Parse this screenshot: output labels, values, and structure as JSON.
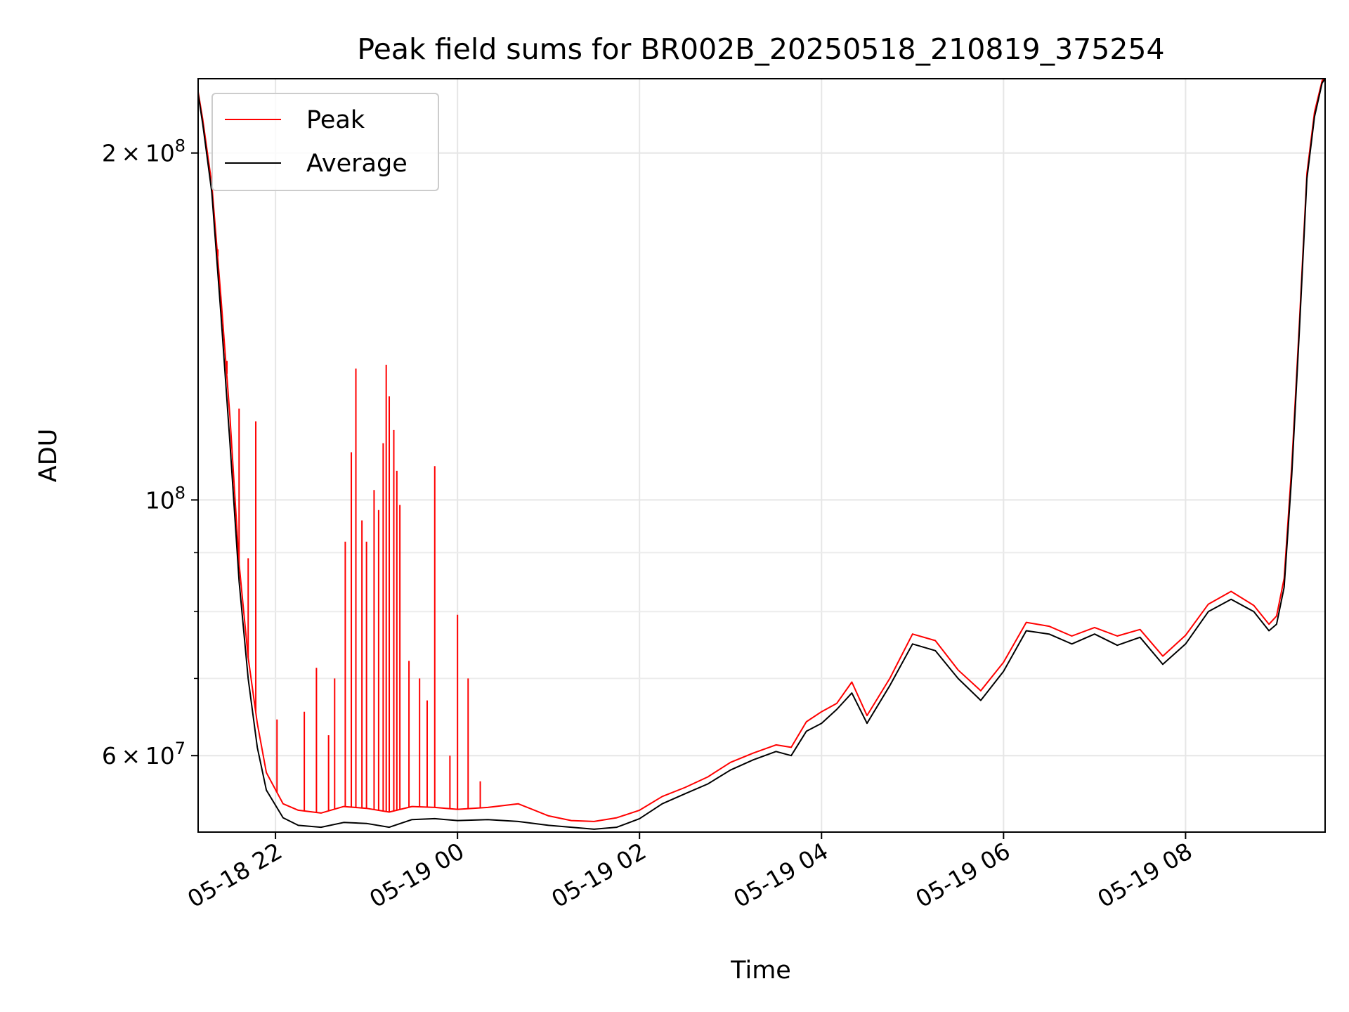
{
  "chart_data": {
    "type": "line",
    "title": "Peak field sums for BR002B_20250518_210819_375254",
    "xlabel": "Time",
    "ylabel": "ADU",
    "y_scale": "log",
    "ylim": [
      51500000,
      232000000
    ],
    "xlim": [
      "2025-05-18 21:09",
      "2025-05-19 09:32"
    ],
    "grid": true,
    "legend_location": "top-left",
    "x_ticks": [
      {
        "value": "2025-05-18 22:00",
        "label": "05-18 22"
      },
      {
        "value": "2025-05-19 00:00",
        "label": "05-19 00"
      },
      {
        "value": "2025-05-19 02:00",
        "label": "05-19 02"
      },
      {
        "value": "2025-05-19 04:00",
        "label": "05-19 04"
      },
      {
        "value": "2025-05-19 06:00",
        "label": "05-19 06"
      },
      {
        "value": "2025-05-19 08:00",
        "label": "05-19 08"
      }
    ],
    "y_ticks": [
      {
        "value": 200000000,
        "mantissa": "2",
        "exp": "8"
      },
      {
        "value": 100000000,
        "mantissa": "",
        "exp": "8"
      },
      {
        "value": 60000000,
        "mantissa": "6",
        "exp": "7"
      }
    ],
    "y_minor_ticks": [
      70000000,
      80000000,
      90000000
    ],
    "series": [
      {
        "name": "Average",
        "color": "#000000",
        "x": [
          "2025-05-18 21:09",
          "2025-05-18 21:12",
          "2025-05-18 21:18",
          "2025-05-18 21:24",
          "2025-05-18 21:30",
          "2025-05-18 21:36",
          "2025-05-18 21:42",
          "2025-05-18 21:48",
          "2025-05-18 21:54",
          "2025-05-18 22:05",
          "2025-05-18 22:15",
          "2025-05-18 22:30",
          "2025-05-18 22:45",
          "2025-05-18 23:00",
          "2025-05-18 23:15",
          "2025-05-18 23:30",
          "2025-05-18 23:45",
          "2025-05-19 00:00",
          "2025-05-19 00:20",
          "2025-05-19 00:40",
          "2025-05-19 01:00",
          "2025-05-19 01:15",
          "2025-05-19 01:30",
          "2025-05-19 01:45",
          "2025-05-19 02:00",
          "2025-05-19 02:15",
          "2025-05-19 02:30",
          "2025-05-19 02:45",
          "2025-05-19 03:00",
          "2025-05-19 03:15",
          "2025-05-19 03:30",
          "2025-05-19 03:40",
          "2025-05-19 03:50",
          "2025-05-19 04:00",
          "2025-05-19 04:10",
          "2025-05-19 04:20",
          "2025-05-19 04:30",
          "2025-05-19 04:45",
          "2025-05-19 05:00",
          "2025-05-19 05:15",
          "2025-05-19 05:30",
          "2025-05-19 05:45",
          "2025-05-19 06:00",
          "2025-05-19 06:15",
          "2025-05-19 06:30",
          "2025-05-19 06:45",
          "2025-05-19 07:00",
          "2025-05-19 07:15",
          "2025-05-19 07:30",
          "2025-05-19 07:45",
          "2025-05-19 08:00",
          "2025-05-19 08:15",
          "2025-05-19 08:30",
          "2025-05-19 08:45",
          "2025-05-19 08:55",
          "2025-05-19 09:00",
          "2025-05-19 09:05",
          "2025-05-19 09:10",
          "2025-05-19 09:15",
          "2025-05-19 09:20",
          "2025-05-19 09:25",
          "2025-05-19 09:30",
          "2025-05-19 09:32"
        ],
        "y": [
          225000000,
          212000000,
          185000000,
          145000000,
          112000000,
          85000000,
          70000000,
          61000000,
          56000000,
          53000000,
          52200000,
          52000000,
          52500000,
          52400000,
          52000000,
          52800000,
          52900000,
          52700000,
          52800000,
          52600000,
          52200000,
          52000000,
          51800000,
          52000000,
          52900000,
          54500000,
          55600000,
          56700000,
          58300000,
          59500000,
          60500000,
          60000000,
          63000000,
          64000000,
          65800000,
          68000000,
          64000000,
          69000000,
          75000000,
          74000000,
          70000000,
          67000000,
          71000000,
          77000000,
          76500000,
          75000000,
          76500000,
          74800000,
          76000000,
          72000000,
          75000000,
          80000000,
          82000000,
          80000000,
          77000000,
          78000000,
          84000000,
          105000000,
          140000000,
          190000000,
          215000000,
          230000000,
          232000000
        ]
      },
      {
        "name": "Peak",
        "color": "#ff0000",
        "x": [
          "2025-05-18 21:09",
          "2025-05-18 21:12",
          "2025-05-18 21:18",
          "2025-05-18 21:24",
          "2025-05-18 21:30",
          "2025-05-18 21:36",
          "2025-05-18 21:42",
          "2025-05-18 21:48",
          "2025-05-18 21:54",
          "2025-05-18 22:05",
          "2025-05-18 22:15",
          "2025-05-18 22:30",
          "2025-05-18 22:45",
          "2025-05-18 23:00",
          "2025-05-18 23:15",
          "2025-05-18 23:30",
          "2025-05-18 23:45",
          "2025-05-19 00:00",
          "2025-05-19 00:20",
          "2025-05-19 00:40",
          "2025-05-19 01:00",
          "2025-05-19 01:15",
          "2025-05-19 01:30",
          "2025-05-19 01:45",
          "2025-05-19 02:00",
          "2025-05-19 02:15",
          "2025-05-19 02:30",
          "2025-05-19 02:45",
          "2025-05-19 03:00",
          "2025-05-19 03:15",
          "2025-05-19 03:30",
          "2025-05-19 03:40",
          "2025-05-19 03:50",
          "2025-05-19 04:00",
          "2025-05-19 04:10",
          "2025-05-19 04:20",
          "2025-05-19 04:30",
          "2025-05-19 04:45",
          "2025-05-19 05:00",
          "2025-05-19 05:15",
          "2025-05-19 05:30",
          "2025-05-19 05:45",
          "2025-05-19 06:00",
          "2025-05-19 06:15",
          "2025-05-19 06:30",
          "2025-05-19 06:45",
          "2025-05-19 07:00",
          "2025-05-19 07:15",
          "2025-05-19 07:30",
          "2025-05-19 07:45",
          "2025-05-19 08:00",
          "2025-05-19 08:15",
          "2025-05-19 08:30",
          "2025-05-19 08:45",
          "2025-05-19 08:55",
          "2025-05-19 09:00",
          "2025-05-19 09:05",
          "2025-05-19 09:10",
          "2025-05-19 09:15",
          "2025-05-19 09:20",
          "2025-05-19 09:25",
          "2025-05-19 09:30",
          "2025-05-19 09:32"
        ],
        "y": [
          226000000,
          214000000,
          188000000,
          150000000,
          118000000,
          88000000,
          73000000,
          64000000,
          58000000,
          54500000,
          53800000,
          53500000,
          54200000,
          54000000,
          53600000,
          54200000,
          54100000,
          53900000,
          54100000,
          54500000,
          53200000,
          52700000,
          52600000,
          53000000,
          53800000,
          55300000,
          56300000,
          57500000,
          59200000,
          60300000,
          61300000,
          61000000,
          64200000,
          65500000,
          66600000,
          69500000,
          65000000,
          70000000,
          76500000,
          75500000,
          71200000,
          68300000,
          72300000,
          78300000,
          77700000,
          76200000,
          77500000,
          76200000,
          77200000,
          73200000,
          76300000,
          81200000,
          83300000,
          81000000,
          78000000,
          79300000,
          85500000,
          107000000,
          142000000,
          192000000,
          217000000,
          231000000,
          233000000
        ],
        "spikes": [
          {
            "x": "2025-05-18 21:17",
            "y": 190000000
          },
          {
            "x": "2025-05-18 21:22",
            "y": 165000000
          },
          {
            "x": "2025-05-18 21:28",
            "y": 132000000
          },
          {
            "x": "2025-05-18 21:36",
            "y": 120000000
          },
          {
            "x": "2025-05-18 21:42",
            "y": 89000000
          },
          {
            "x": "2025-05-18 21:47",
            "y": 117000000
          },
          {
            "x": "2025-05-18 22:01",
            "y": 64500000
          },
          {
            "x": "2025-05-18 22:19",
            "y": 65500000
          },
          {
            "x": "2025-05-18 22:27",
            "y": 71500000
          },
          {
            "x": "2025-05-18 22:35",
            "y": 62500000
          },
          {
            "x": "2025-05-18 22:39",
            "y": 70000000
          },
          {
            "x": "2025-05-18 22:46",
            "y": 92000000
          },
          {
            "x": "2025-05-18 22:50",
            "y": 110000000
          },
          {
            "x": "2025-05-18 22:53",
            "y": 130000000
          },
          {
            "x": "2025-05-18 22:57",
            "y": 96000000
          },
          {
            "x": "2025-05-18 23:00",
            "y": 92000000
          },
          {
            "x": "2025-05-18 23:05",
            "y": 102000000
          },
          {
            "x": "2025-05-18 23:08",
            "y": 98000000
          },
          {
            "x": "2025-05-18 23:11",
            "y": 112000000
          },
          {
            "x": "2025-05-18 23:13",
            "y": 131000000
          },
          {
            "x": "2025-05-18 23:15",
            "y": 123000000
          },
          {
            "x": "2025-05-18 23:18",
            "y": 115000000
          },
          {
            "x": "2025-05-18 23:20",
            "y": 106000000
          },
          {
            "x": "2025-05-18 23:22",
            "y": 99000000
          },
          {
            "x": "2025-05-18 23:28",
            "y": 72500000
          },
          {
            "x": "2025-05-18 23:35",
            "y": 70000000
          },
          {
            "x": "2025-05-18 23:40",
            "y": 67000000
          },
          {
            "x": "2025-05-18 23:45",
            "y": 107000000
          },
          {
            "x": "2025-05-18 23:55",
            "y": 60000000
          },
          {
            "x": "2025-05-19 00:00",
            "y": 79500000
          },
          {
            "x": "2025-05-19 00:07",
            "y": 70000000
          },
          {
            "x": "2025-05-19 00:15",
            "y": 57000000
          }
        ]
      }
    ]
  }
}
